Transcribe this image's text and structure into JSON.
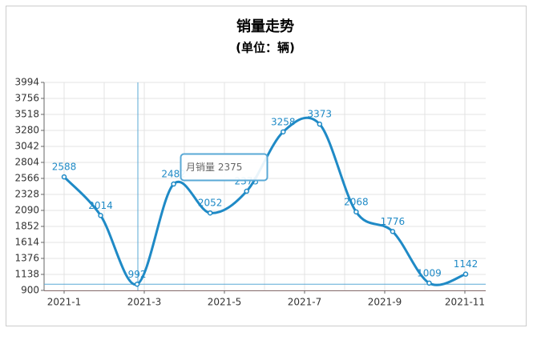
{
  "chart_data": {
    "type": "line",
    "title": "销量走势",
    "subtitle": "(单位：辆)",
    "x_labels": [
      "2021-1",
      "2021-3",
      "2021-5",
      "2021-7",
      "2021-9",
      "2021-11"
    ],
    "series": [
      {
        "name": "月销量",
        "color": "#1f8ac6",
        "values": [
          2588,
          2014,
          992,
          2482,
          2052,
          2375,
          3258,
          3373,
          2068,
          1776,
          1009,
          1142
        ]
      }
    ],
    "ylim": [
      900,
      3994
    ],
    "yticks": [
      900,
      1138,
      1376,
      1614,
      1852,
      2090,
      2328,
      2566,
      2804,
      3042,
      3280,
      3518,
      3756,
      3994
    ],
    "grid": true,
    "tooltip": {
      "series": 0,
      "index": 5
    }
  }
}
